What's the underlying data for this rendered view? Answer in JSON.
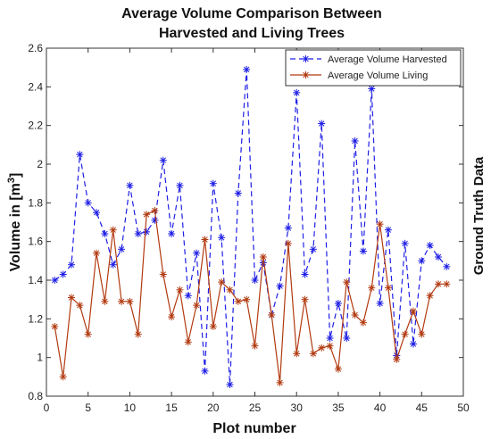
{
  "chart_data": {
    "type": "line",
    "title_lines": [
      "Average Volume Comparison Between",
      "Harvested and Living Trees"
    ],
    "xlabel": "Plot number",
    "ylabel": "Volume in [m3]",
    "ylabel_main": "Volume in [m",
    "ylabel_sup": "3",
    "ylabel_end": "]",
    "side_label": "Ground Truth Data",
    "xlim": [
      0,
      50
    ],
    "ylim": [
      0.8,
      2.6
    ],
    "x_ticks": [
      0,
      5,
      10,
      15,
      20,
      25,
      30,
      35,
      40,
      45,
      50
    ],
    "y_ticks": [
      0.8,
      1,
      1.2,
      1.4,
      1.6,
      1.8,
      2,
      2.2,
      2.4,
      2.6
    ],
    "x_tick_labels": [
      "0",
      "5",
      "10",
      "15",
      "20",
      "25",
      "30",
      "35",
      "40",
      "45",
      "50"
    ],
    "y_tick_labels": [
      "0.8",
      "1",
      "1.2",
      "1.4",
      "1.6",
      "1.8",
      "2",
      "2.2",
      "2.4",
      "2.6"
    ],
    "grid": false,
    "legend_position": "top-right",
    "x": [
      1,
      2,
      3,
      4,
      5,
      6,
      7,
      8,
      9,
      10,
      11,
      12,
      13,
      14,
      15,
      16,
      17,
      18,
      19,
      20,
      21,
      22,
      23,
      24,
      25,
      26,
      27,
      28,
      29,
      30,
      31,
      32,
      33,
      34,
      35,
      36,
      37,
      38,
      39,
      40,
      41,
      42,
      43,
      44,
      45,
      46,
      47,
      48
    ],
    "series": [
      {
        "name": "Average Volume Harvested",
        "color": "#1f1fe6",
        "style": "dashed",
        "marker": "asterisk",
        "values": [
          1.4,
          1.43,
          1.48,
          2.05,
          1.8,
          1.75,
          1.64,
          1.48,
          1.56,
          1.89,
          1.64,
          1.65,
          1.71,
          2.02,
          1.64,
          1.89,
          1.32,
          1.54,
          0.93,
          1.9,
          1.62,
          0.86,
          1.85,
          2.49,
          1.4,
          1.49,
          1.22,
          1.37,
          1.67,
          2.37,
          1.43,
          1.56,
          2.21,
          1.1,
          1.28,
          1.1,
          2.12,
          1.55,
          2.39,
          1.28,
          1.66,
          1.01,
          1.59,
          1.07,
          1.5,
          1.58,
          1.52,
          1.47
        ]
      },
      {
        "name": "Average Volume Living",
        "color": "#b23a10",
        "style": "solid",
        "marker": "asterisk",
        "values": [
          1.16,
          0.9,
          1.31,
          1.27,
          1.12,
          1.54,
          1.29,
          1.66,
          1.29,
          1.29,
          1.12,
          1.74,
          1.76,
          1.43,
          1.21,
          1.35,
          1.08,
          1.27,
          1.61,
          1.16,
          1.39,
          1.35,
          1.29,
          1.3,
          1.06,
          1.52,
          1.22,
          0.87,
          1.59,
          1.02,
          1.3,
          1.02,
          1.05,
          1.06,
          0.94,
          1.39,
          1.22,
          1.18,
          1.36,
          1.69,
          1.36,
          0.99,
          1.12,
          1.24,
          1.12,
          1.32,
          1.38,
          1.38
        ]
      }
    ]
  }
}
